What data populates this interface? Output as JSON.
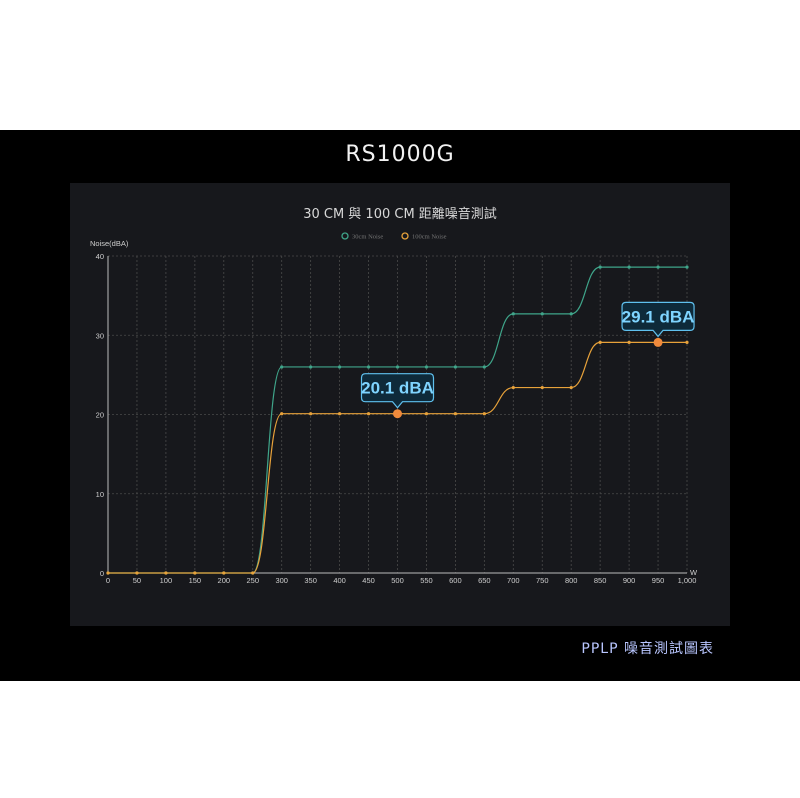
{
  "product_name": "RS1000G",
  "caption": "PPLP 噪音測試圖表",
  "chart_data": {
    "type": "line",
    "title": "30 CM 與 100 CM 距離噪音測試",
    "ylabel": "Noise(dBA)",
    "xlabel": "W",
    "xlim": [
      0,
      1000
    ],
    "ylim": [
      0,
      40
    ],
    "grid": true,
    "legend_placement": "top-center",
    "x_ticks": [
      "0",
      "50",
      "100",
      "150",
      "200",
      "250",
      "300",
      "350",
      "400",
      "450",
      "500",
      "550",
      "600",
      "650",
      "700",
      "750",
      "800",
      "850",
      "900",
      "950",
      "1,000"
    ],
    "y_ticks": [
      "0",
      "10",
      "20",
      "30",
      "40"
    ],
    "x": [
      0,
      50,
      100,
      150,
      200,
      250,
      300,
      350,
      400,
      450,
      500,
      550,
      600,
      650,
      700,
      750,
      800,
      850,
      900,
      950,
      1000
    ],
    "series": [
      {
        "name": "30cm Noise",
        "color": "#3fa58a",
        "values": [
          0,
          0,
          0,
          0,
          0,
          0,
          26,
          26,
          26,
          26,
          26,
          26,
          26,
          26,
          32.7,
          32.7,
          32.7,
          38.6,
          38.6,
          38.6,
          38.6
        ]
      },
      {
        "name": "100cm Noise",
        "color": "#e8a23a",
        "values": [
          0,
          0,
          0,
          0,
          0,
          0,
          20.1,
          20.1,
          20.1,
          20.1,
          20.1,
          20.1,
          20.1,
          20.1,
          23.4,
          23.4,
          23.4,
          29.1,
          29.1,
          29.1,
          29.1
        ]
      }
    ],
    "annotations": [
      {
        "text": "20.1 dBA",
        "series": "100cm Noise",
        "x": 500,
        "y": 20.1
      },
      {
        "text": "29.1 dBA",
        "series": "100cm Noise",
        "x": 950,
        "y": 29.1
      }
    ],
    "highlight_color": "#f08a3c",
    "callout_color": "#7fd4ff"
  }
}
